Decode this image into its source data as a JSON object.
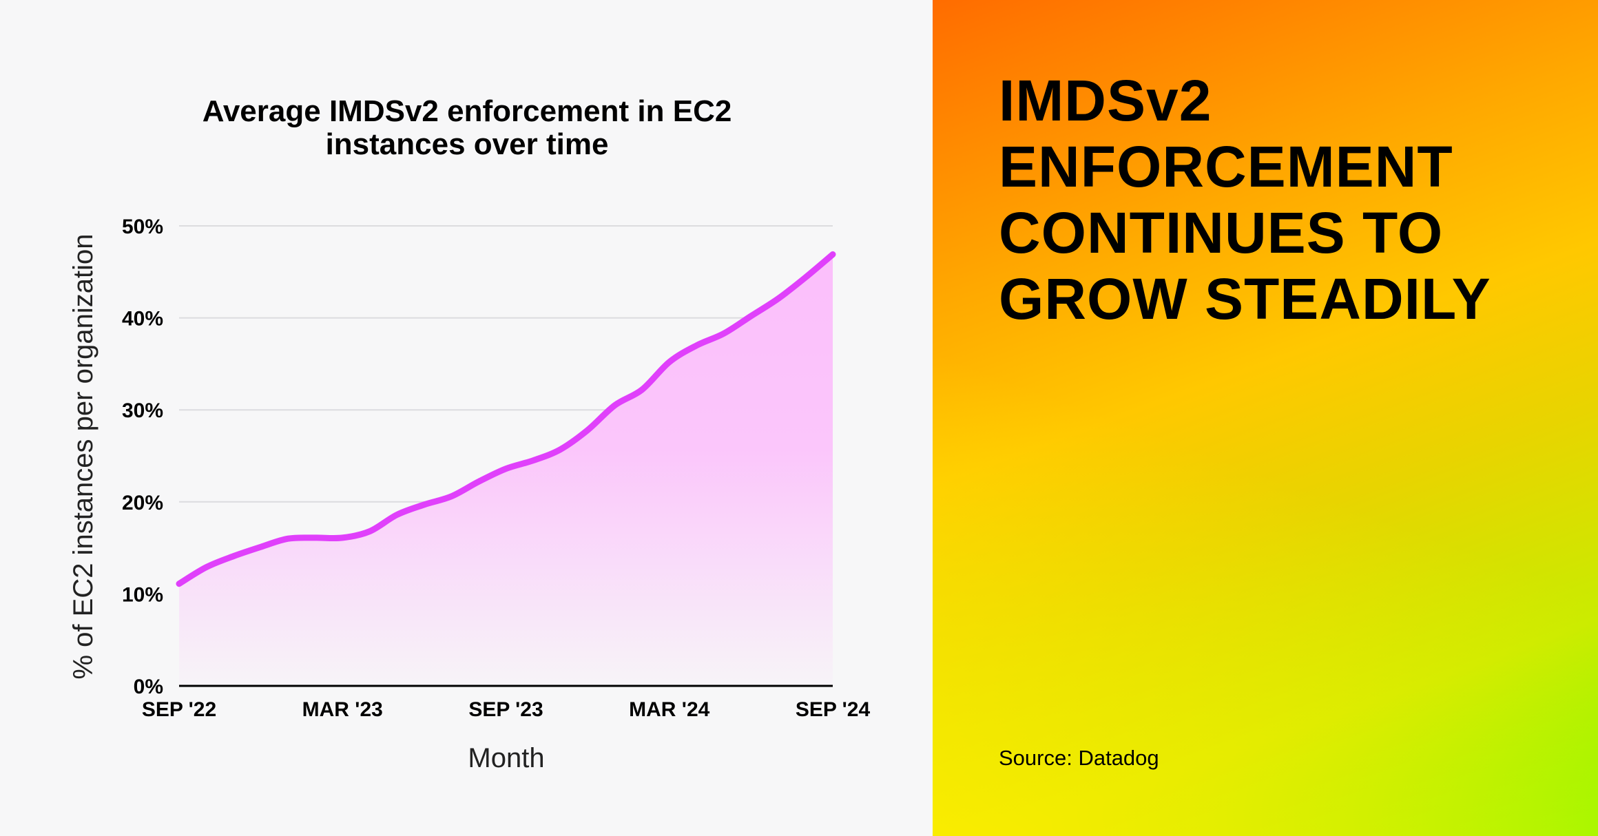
{
  "headline": [
    "IMDSv2",
    "ENFORCEMENT",
    "CONTINUES TO",
    "GROW STEADILY"
  ],
  "source": "Source: Datadog",
  "colors": {
    "line": "#e040fb",
    "fill": "#fbc0fb",
    "panel_left": "#f7f7f8",
    "gradient": [
      "#ff6c00",
      "#ffc800",
      "#ffec00",
      "#66ff00"
    ]
  },
  "chart_data": {
    "type": "area",
    "title": [
      "Average IMDSv2 enforcement in EC2",
      "instances over time"
    ],
    "xlabel": "Month",
    "ylabel": "% of EC2 instances per organization",
    "x_tick_labels": [
      "SEP '22",
      "MAR '23",
      "SEP '23",
      "MAR '24",
      "SEP '24"
    ],
    "y_tick_labels": [
      "0%",
      "10%",
      "20%",
      "30%",
      "40%",
      "50%"
    ],
    "ylim": [
      0,
      50
    ],
    "grid": true,
    "x": [
      "2022-09",
      "2022-10",
      "2022-11",
      "2022-12",
      "2023-01",
      "2023-02",
      "2023-03",
      "2023-04",
      "2023-05",
      "2023-06",
      "2023-07",
      "2023-08",
      "2023-09",
      "2023-10",
      "2023-11",
      "2023-12",
      "2024-01",
      "2024-02",
      "2024-03",
      "2024-04",
      "2024-05",
      "2024-06",
      "2024-07",
      "2024-08",
      "2024-09"
    ],
    "values": [
      11.1,
      12.9,
      14.1,
      15.1,
      16.0,
      16.1,
      16.1,
      16.8,
      18.6,
      19.7,
      20.6,
      22.2,
      23.6,
      24.5,
      25.7,
      27.8,
      30.5,
      32.2,
      35.2,
      37.0,
      38.3,
      40.2,
      42.1,
      44.4,
      46.9
    ]
  }
}
